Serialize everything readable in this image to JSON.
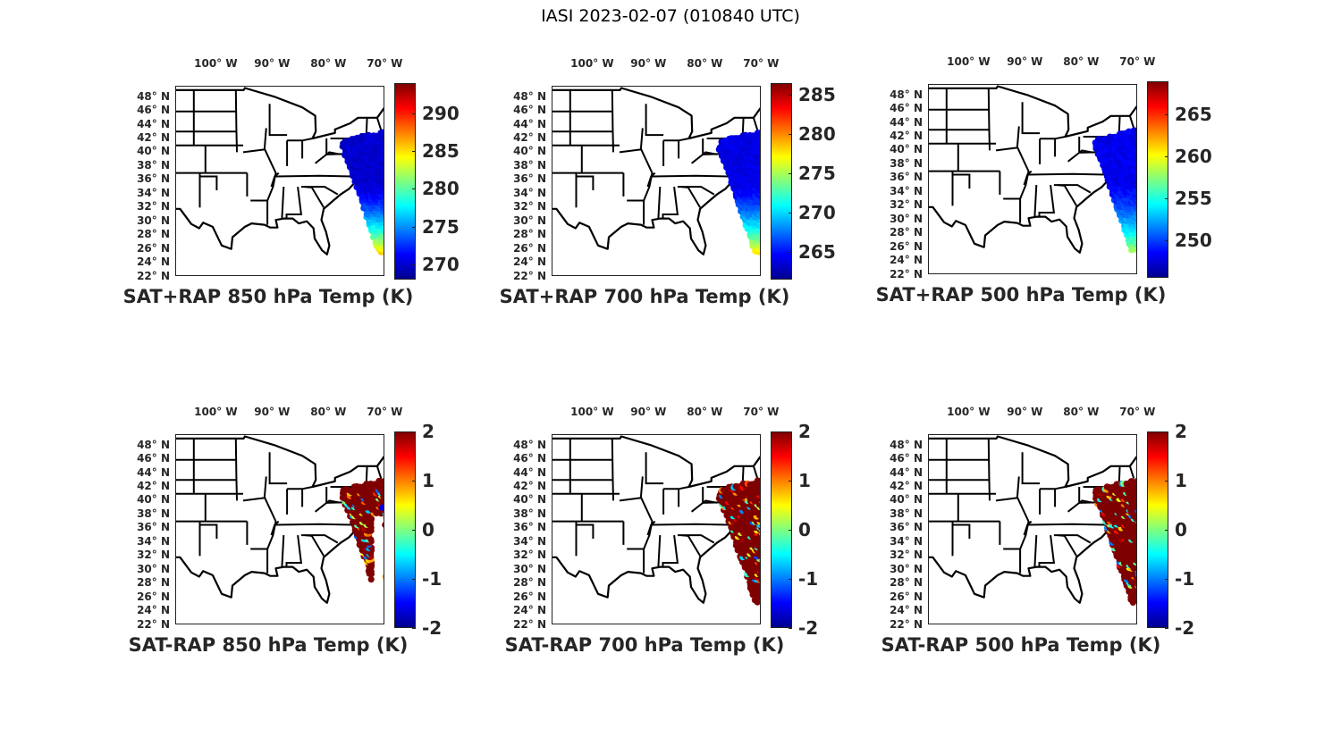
{
  "figure_title": "IASI 2023-02-07 (010840 UTC)",
  "chart_data": [
    {
      "type": "scatter",
      "title": "SAT+RAP 850 hPa Temp (K)",
      "colormap": "jet",
      "clim": [
        268,
        294
      ],
      "colorbar_ticks": [
        270,
        275,
        280,
        285,
        290
      ],
      "lon_ticks": [
        "100° W",
        "90° W",
        "80° W",
        "70° W"
      ],
      "lat_ticks": [
        "48° N",
        "46° N",
        "44° N",
        "42° N",
        "40° N",
        "38° N",
        "36° N",
        "34° N",
        "32° N",
        "30° N",
        "28° N",
        "26° N",
        "24° N",
        "22° N"
      ],
      "swath_value_range": [
        270,
        287
      ]
    },
    {
      "type": "scatter",
      "title": "SAT+RAP 700 hPa Temp (K)",
      "colormap": "jet",
      "clim": [
        261.5,
        286.5
      ],
      "colorbar_ticks": [
        265,
        270,
        275,
        280,
        285
      ],
      "lon_ticks": [
        "100° W",
        "90° W",
        "80° W",
        "70° W"
      ],
      "lat_ticks": [
        "48° N",
        "46° N",
        "44° N",
        "42° N",
        "40° N",
        "38° N",
        "36° N",
        "34° N",
        "32° N",
        "30° N",
        "28° N",
        "26° N",
        "24° N",
        "22° N"
      ],
      "swath_value_range": [
        264,
        279
      ]
    },
    {
      "type": "scatter",
      "title": "SAT+RAP 500 hPa Temp (K)",
      "colormap": "jet",
      "clim": [
        245.5,
        269
      ],
      "colorbar_ticks": [
        250,
        255,
        260,
        265
      ],
      "lon_ticks": [
        "100° W",
        "90° W",
        "80° W",
        "70° W"
      ],
      "lat_ticks": [
        "48° N",
        "46° N",
        "44° N",
        "42° N",
        "40° N",
        "38° N",
        "36° N",
        "34° N",
        "32° N",
        "30° N",
        "28° N",
        "26° N",
        "24° N",
        "22° N"
      ],
      "swath_value_range": [
        248,
        259
      ]
    },
    {
      "type": "scatter",
      "title": "SAT-RAP 850 hPa Temp (K)",
      "colormap": "jet",
      "clim": [
        -2,
        2
      ],
      "colorbar_ticks": [
        -2,
        -1,
        0,
        1,
        2
      ],
      "lon_ticks": [
        "100° W",
        "90° W",
        "80° W",
        "70° W"
      ],
      "lat_ticks": [
        "48° N",
        "46° N",
        "44° N",
        "42° N",
        "40° N",
        "38° N",
        "36° N",
        "34° N",
        "32° N",
        "30° N",
        "28° N",
        "26° N",
        "24° N",
        "22° N"
      ],
      "swath_value_range": [
        1.5,
        2
      ]
    },
    {
      "type": "scatter",
      "title": "SAT-RAP 700 hPa Temp (K)",
      "colormap": "jet",
      "clim": [
        -2,
        2
      ],
      "colorbar_ticks": [
        -2,
        -1,
        0,
        1,
        2
      ],
      "lon_ticks": [
        "100° W",
        "90° W",
        "80° W",
        "70° W"
      ],
      "lat_ticks": [
        "48° N",
        "46° N",
        "44° N",
        "42° N",
        "40° N",
        "38° N",
        "36° N",
        "34° N",
        "32° N",
        "30° N",
        "28° N",
        "26° N",
        "24° N",
        "22° N"
      ],
      "swath_value_range": [
        1.5,
        2
      ]
    },
    {
      "type": "scatter",
      "title": "SAT-RAP 500 hPa Temp (K)",
      "colormap": "jet",
      "clim": [
        -2,
        2
      ],
      "colorbar_ticks": [
        -2,
        -1,
        0,
        1,
        2
      ],
      "lon_ticks": [
        "100° W",
        "90° W",
        "80° W",
        "70° W"
      ],
      "lat_ticks": [
        "48° N",
        "46° N",
        "44° N",
        "42° N",
        "40° N",
        "38° N",
        "36° N",
        "34° N",
        "32° N",
        "30° N",
        "28° N",
        "26° N",
        "24° N",
        "22° N"
      ],
      "swath_value_range": [
        1.5,
        2
      ]
    }
  ]
}
